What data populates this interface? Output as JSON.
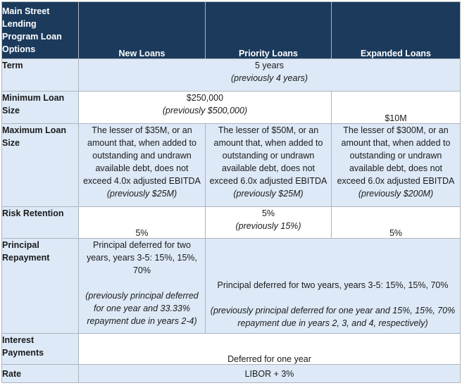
{
  "header": {
    "corner": [
      "Main Street",
      "Lending",
      "Program Loan",
      "Options"
    ],
    "columns": [
      "New Loans",
      "Priority Loans",
      "Expanded Loans"
    ]
  },
  "rows": {
    "term": {
      "label": "Term",
      "value": "5 years",
      "previous": "(previously 4 years)"
    },
    "min_loan": {
      "label": [
        "Minimum Loan",
        "Size"
      ],
      "value": "$250,000",
      "previous": "(previously $500,000)",
      "expanded": "$10M"
    },
    "max_loan": {
      "label": [
        "Maximum Loan",
        "Size"
      ],
      "new": [
        "The lesser of $35M, or an",
        "amount that, when added to",
        "outstanding and undrawn",
        "available debt, does not",
        "exceed 4.0x adjusted EBITDA"
      ],
      "new_prev": "(previously $25M)",
      "priority": [
        "The lesser of $50M, or an",
        "amount that, when added to",
        "outstanding or undrawn",
        "available debt, does not",
        "exceed 6.0x adjusted EBITDA"
      ],
      "priority_prev": "(previously $25M)",
      "expanded": [
        "The lesser of $300M, or an",
        "amount that, when added to",
        "outstanding or undrawn",
        "available debt, does not",
        "exceed 6.0x adjusted EBITDA"
      ],
      "expanded_prev": "(previously $200M)"
    },
    "risk": {
      "label": "Risk Retention",
      "new": "5%",
      "priority": "5%",
      "priority_prev": "(previously 15%)",
      "expanded": "5%"
    },
    "principal": {
      "label": [
        "Principal",
        "Repayment"
      ],
      "new": [
        "Principal deferred for two",
        "years, years 3-5: 15%, 15%,",
        "70%"
      ],
      "new_prev": [
        "(previously principal deferred",
        "for one year and 33.33%",
        "repayment due in years 2-4)"
      ],
      "other": "Principal deferred for two years, years 3-5: 15%, 15%, 70%",
      "other_prev": [
        "(previously principal deferred for one year and 15%, 15%, 70%",
        "repayment due in years 2, 3, and 4, respectively)"
      ]
    },
    "interest": {
      "label": [
        "Interest",
        "Payments"
      ],
      "value": "Deferred for one year"
    },
    "rate": {
      "label": "Rate",
      "value": "LIBOR + 3%"
    }
  },
  "colors": {
    "header_bg": "#1b3a5c",
    "label_bg": "#dde9f7",
    "border": "#aeb4bd"
  }
}
